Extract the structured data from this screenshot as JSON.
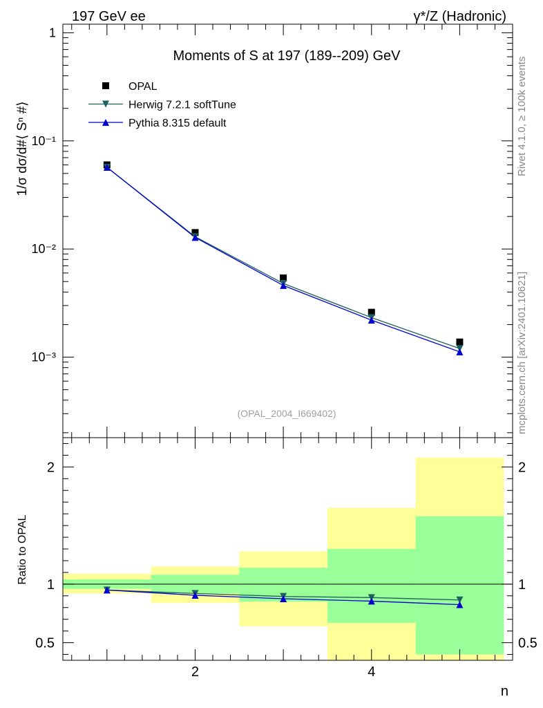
{
  "header": {
    "left": "197 GeV ee",
    "right": "γ*/Z (Hadronic)"
  },
  "side_labels": {
    "rivet": "Rivet 4.1.0, ≥ 100k events",
    "mcplots": "mcplots.cern.ch [arXiv:2401.10621]"
  },
  "chart_data": [
    {
      "type": "scatter",
      "title": "Moments of S at 197 (189--209) GeV",
      "watermark": "(OPAL_2004_I669402)",
      "ylabel": "1/σ  dσ/d#⟨ Sⁿ #⟩",
      "xlabel": "n",
      "xlim": [
        0.5,
        5.6
      ],
      "ylim": [
        0.00018,
        1.2
      ],
      "yscale": "log",
      "yticks": [
        {
          "value": 1,
          "label": "1"
        },
        {
          "value": 0.1,
          "label": "10⁻¹"
        },
        {
          "value": 0.01,
          "label": "10⁻²"
        },
        {
          "value": 0.001,
          "label": "10⁻³"
        }
      ],
      "legend": [
        {
          "name": "OPAL",
          "marker": "square",
          "color": "#000000"
        },
        {
          "name": "Herwig 7.2.1 softTune",
          "marker": "triangle-down",
          "color": "#1f5f5f"
        },
        {
          "name": "Pythia 8.315 default",
          "marker": "triangle-up",
          "color": "#0000cc"
        }
      ],
      "series": [
        {
          "name": "OPAL",
          "x": [
            1,
            2,
            3,
            4,
            5
          ],
          "y": [
            0.06,
            0.0142,
            0.0054,
            0.0026,
            0.00138
          ]
        },
        {
          "name": "Herwig 7.2.1 softTune",
          "x": [
            1,
            2,
            3,
            4,
            5
          ],
          "y": [
            0.057,
            0.013,
            0.0048,
            0.00232,
            0.0012
          ]
        },
        {
          "name": "Pythia 8.315 default",
          "x": [
            1,
            2,
            3,
            4,
            5
          ],
          "y": [
            0.057,
            0.0128,
            0.0046,
            0.0022,
            0.00112
          ]
        }
      ]
    },
    {
      "type": "line",
      "ylabel": "Ratio to OPAL",
      "xlabel": "n",
      "xlim": [
        0.5,
        5.6
      ],
      "ylim": [
        0.35,
        2.25
      ],
      "xticks": [
        {
          "value": 2,
          "label": "2"
        },
        {
          "value": 4,
          "label": "4"
        }
      ],
      "yticks": [
        {
          "value": 0.5,
          "label": "0.5"
        },
        {
          "value": 1,
          "label": "1"
        },
        {
          "value": 2,
          "label": "2"
        }
      ],
      "bands": {
        "bin_edges": [
          0.5,
          1.5,
          2.5,
          3.5,
          4.5,
          5.5
        ],
        "outer_low": [
          0.92,
          0.84,
          0.64,
          0.35,
          0.35
        ],
        "outer_high": [
          1.09,
          1.15,
          1.28,
          1.65,
          2.08
        ],
        "inner_low": [
          0.96,
          0.92,
          0.85,
          0.67,
          0.4
        ],
        "inner_high": [
          1.04,
          1.08,
          1.14,
          1.3,
          1.58
        ]
      },
      "series": [
        {
          "name": "Herwig 7.2.1 softTune",
          "x": [
            1,
            2,
            3,
            4,
            5
          ],
          "y": [
            0.95,
            0.92,
            0.895,
            0.885,
            0.865
          ]
        },
        {
          "name": "Pythia 8.315 default",
          "x": [
            1,
            2,
            3,
            4,
            5
          ],
          "y": [
            0.95,
            0.905,
            0.875,
            0.855,
            0.825
          ]
        }
      ]
    }
  ]
}
